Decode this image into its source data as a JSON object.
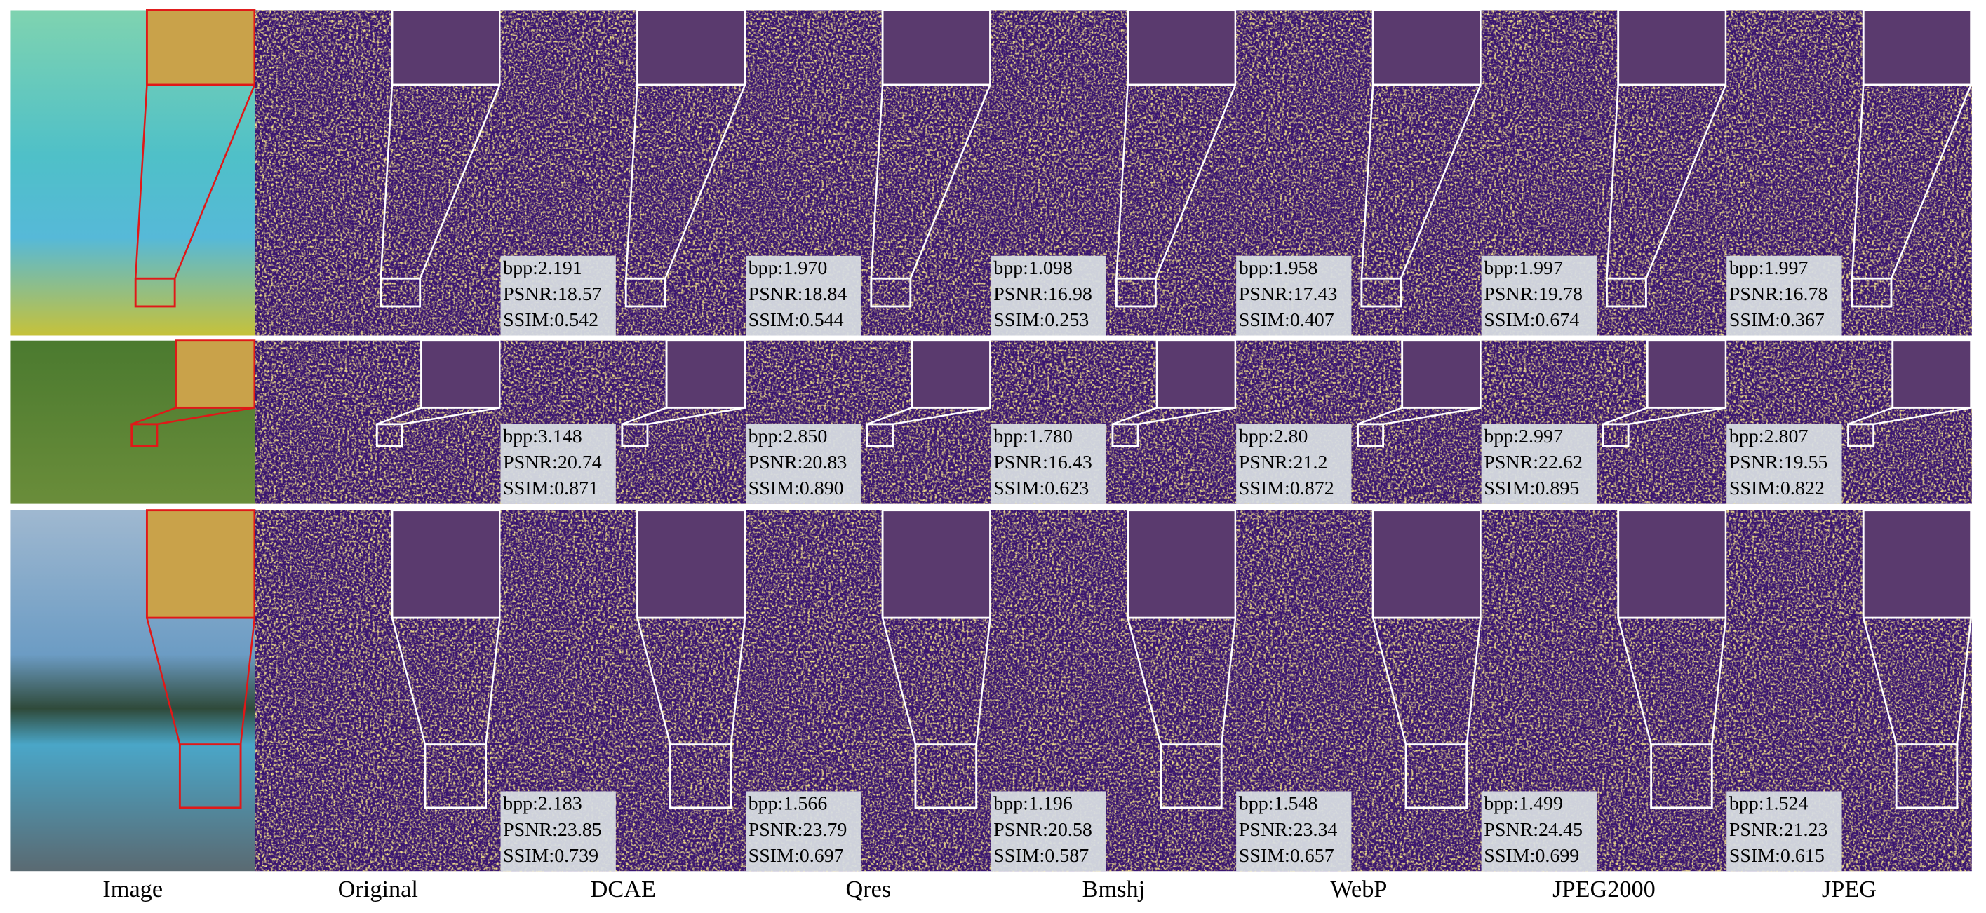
{
  "columns": [
    "Image",
    "Original",
    "DCAE",
    "Qres",
    "Bmshj",
    "WebP",
    "JPEG2000",
    "JPEG"
  ],
  "rows": [
    {
      "metrics": [
        [
          "bpp:2.191",
          "PSNR:18.57",
          "SSIM:0.542"
        ],
        [
          "bpp:1.970",
          "PSNR:18.84",
          "SSIM:0.544"
        ],
        [
          "bpp:1.098",
          "PSNR:16.98",
          "SSIM:0.253"
        ],
        [
          "bpp:1.958",
          "PSNR:17.43",
          "SSIM:0.407"
        ],
        [
          "bpp:1.997",
          "PSNR:19.78",
          "SSIM:0.674"
        ],
        [
          "bpp:1.997",
          "PSNR:16.78",
          "SSIM:0.367"
        ]
      ]
    },
    {
      "metrics": [
        [
          "bpp:3.148",
          "PSNR:20.74",
          "SSIM:0.871"
        ],
        [
          "bpp:2.850",
          "PSNR:20.83",
          "SSIM:0.890"
        ],
        [
          "bpp:1.780",
          "PSNR:16.43",
          "SSIM:0.623"
        ],
        [
          "bpp:2.80",
          "PSNR:21.2",
          "SSIM:0.872"
        ],
        [
          "bpp:2.997",
          "PSNR:22.62",
          "SSIM:0.895"
        ],
        [
          "bpp:2.807",
          "PSNR:19.55",
          "SSIM:0.822"
        ]
      ]
    },
    {
      "metrics": [
        [
          "bpp:2.183",
          "PSNR:23.85",
          "SSIM:0.739"
        ],
        [
          "bpp:1.566",
          "PSNR:23.79",
          "SSIM:0.697"
        ],
        [
          "bpp:1.196",
          "PSNR:20.58",
          "SSIM:0.587"
        ],
        [
          "bpp:1.548",
          "PSNR:23.34",
          "SSIM:0.657"
        ],
        [
          "bpp:1.499",
          "PSNR:24.45",
          "SSIM:0.699"
        ],
        [
          "bpp:1.524",
          "PSNR:21.23",
          "SSIM:0.615"
        ]
      ]
    }
  ]
}
